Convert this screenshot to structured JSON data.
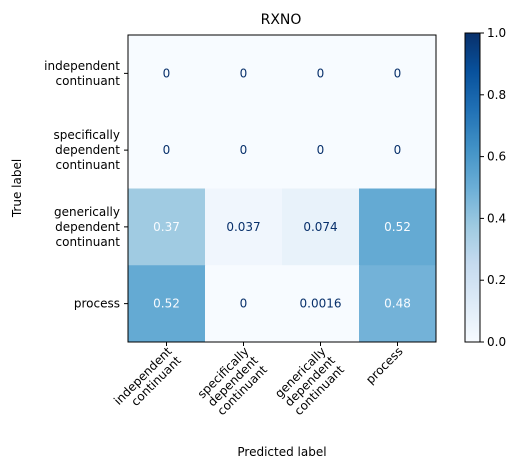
{
  "chart_data": {
    "type": "heatmap",
    "title": "RXNO",
    "xlabel": "Predicted label",
    "ylabel": "True label",
    "row_labels": [
      [
        "independent",
        "continuant"
      ],
      [
        "specifically",
        "dependent",
        "continuant"
      ],
      [
        "generically",
        "dependent",
        "continuant"
      ],
      [
        "process"
      ]
    ],
    "col_labels": [
      [
        "independent",
        "continuant"
      ],
      [
        "specifically",
        "dependent",
        "continuant"
      ],
      [
        "generically",
        "dependent",
        "continuant"
      ],
      [
        "process"
      ]
    ],
    "values": [
      [
        0,
        0,
        0,
        0
      ],
      [
        0,
        0,
        0,
        0
      ],
      [
        0.37,
        0.037,
        0.074,
        0.52
      ],
      [
        0.52,
        0,
        0.0016,
        0.48
      ]
    ],
    "value_labels": [
      [
        "0",
        "0",
        "0",
        "0"
      ],
      [
        "0",
        "0",
        "0",
        "0"
      ],
      [
        "0.37",
        "0.037",
        "0.074",
        "0.52"
      ],
      [
        "0.52",
        "0",
        "0.0016",
        "0.48"
      ]
    ],
    "colormap": "Blues",
    "vmin": 0,
    "vmax": 1,
    "colorbar_ticks": [
      "0.0",
      "0.2",
      "0.4",
      "0.6",
      "0.8",
      "1.0"
    ],
    "colors": {
      "text_dark": "#08306b",
      "text_light": "#f7fbff"
    }
  }
}
